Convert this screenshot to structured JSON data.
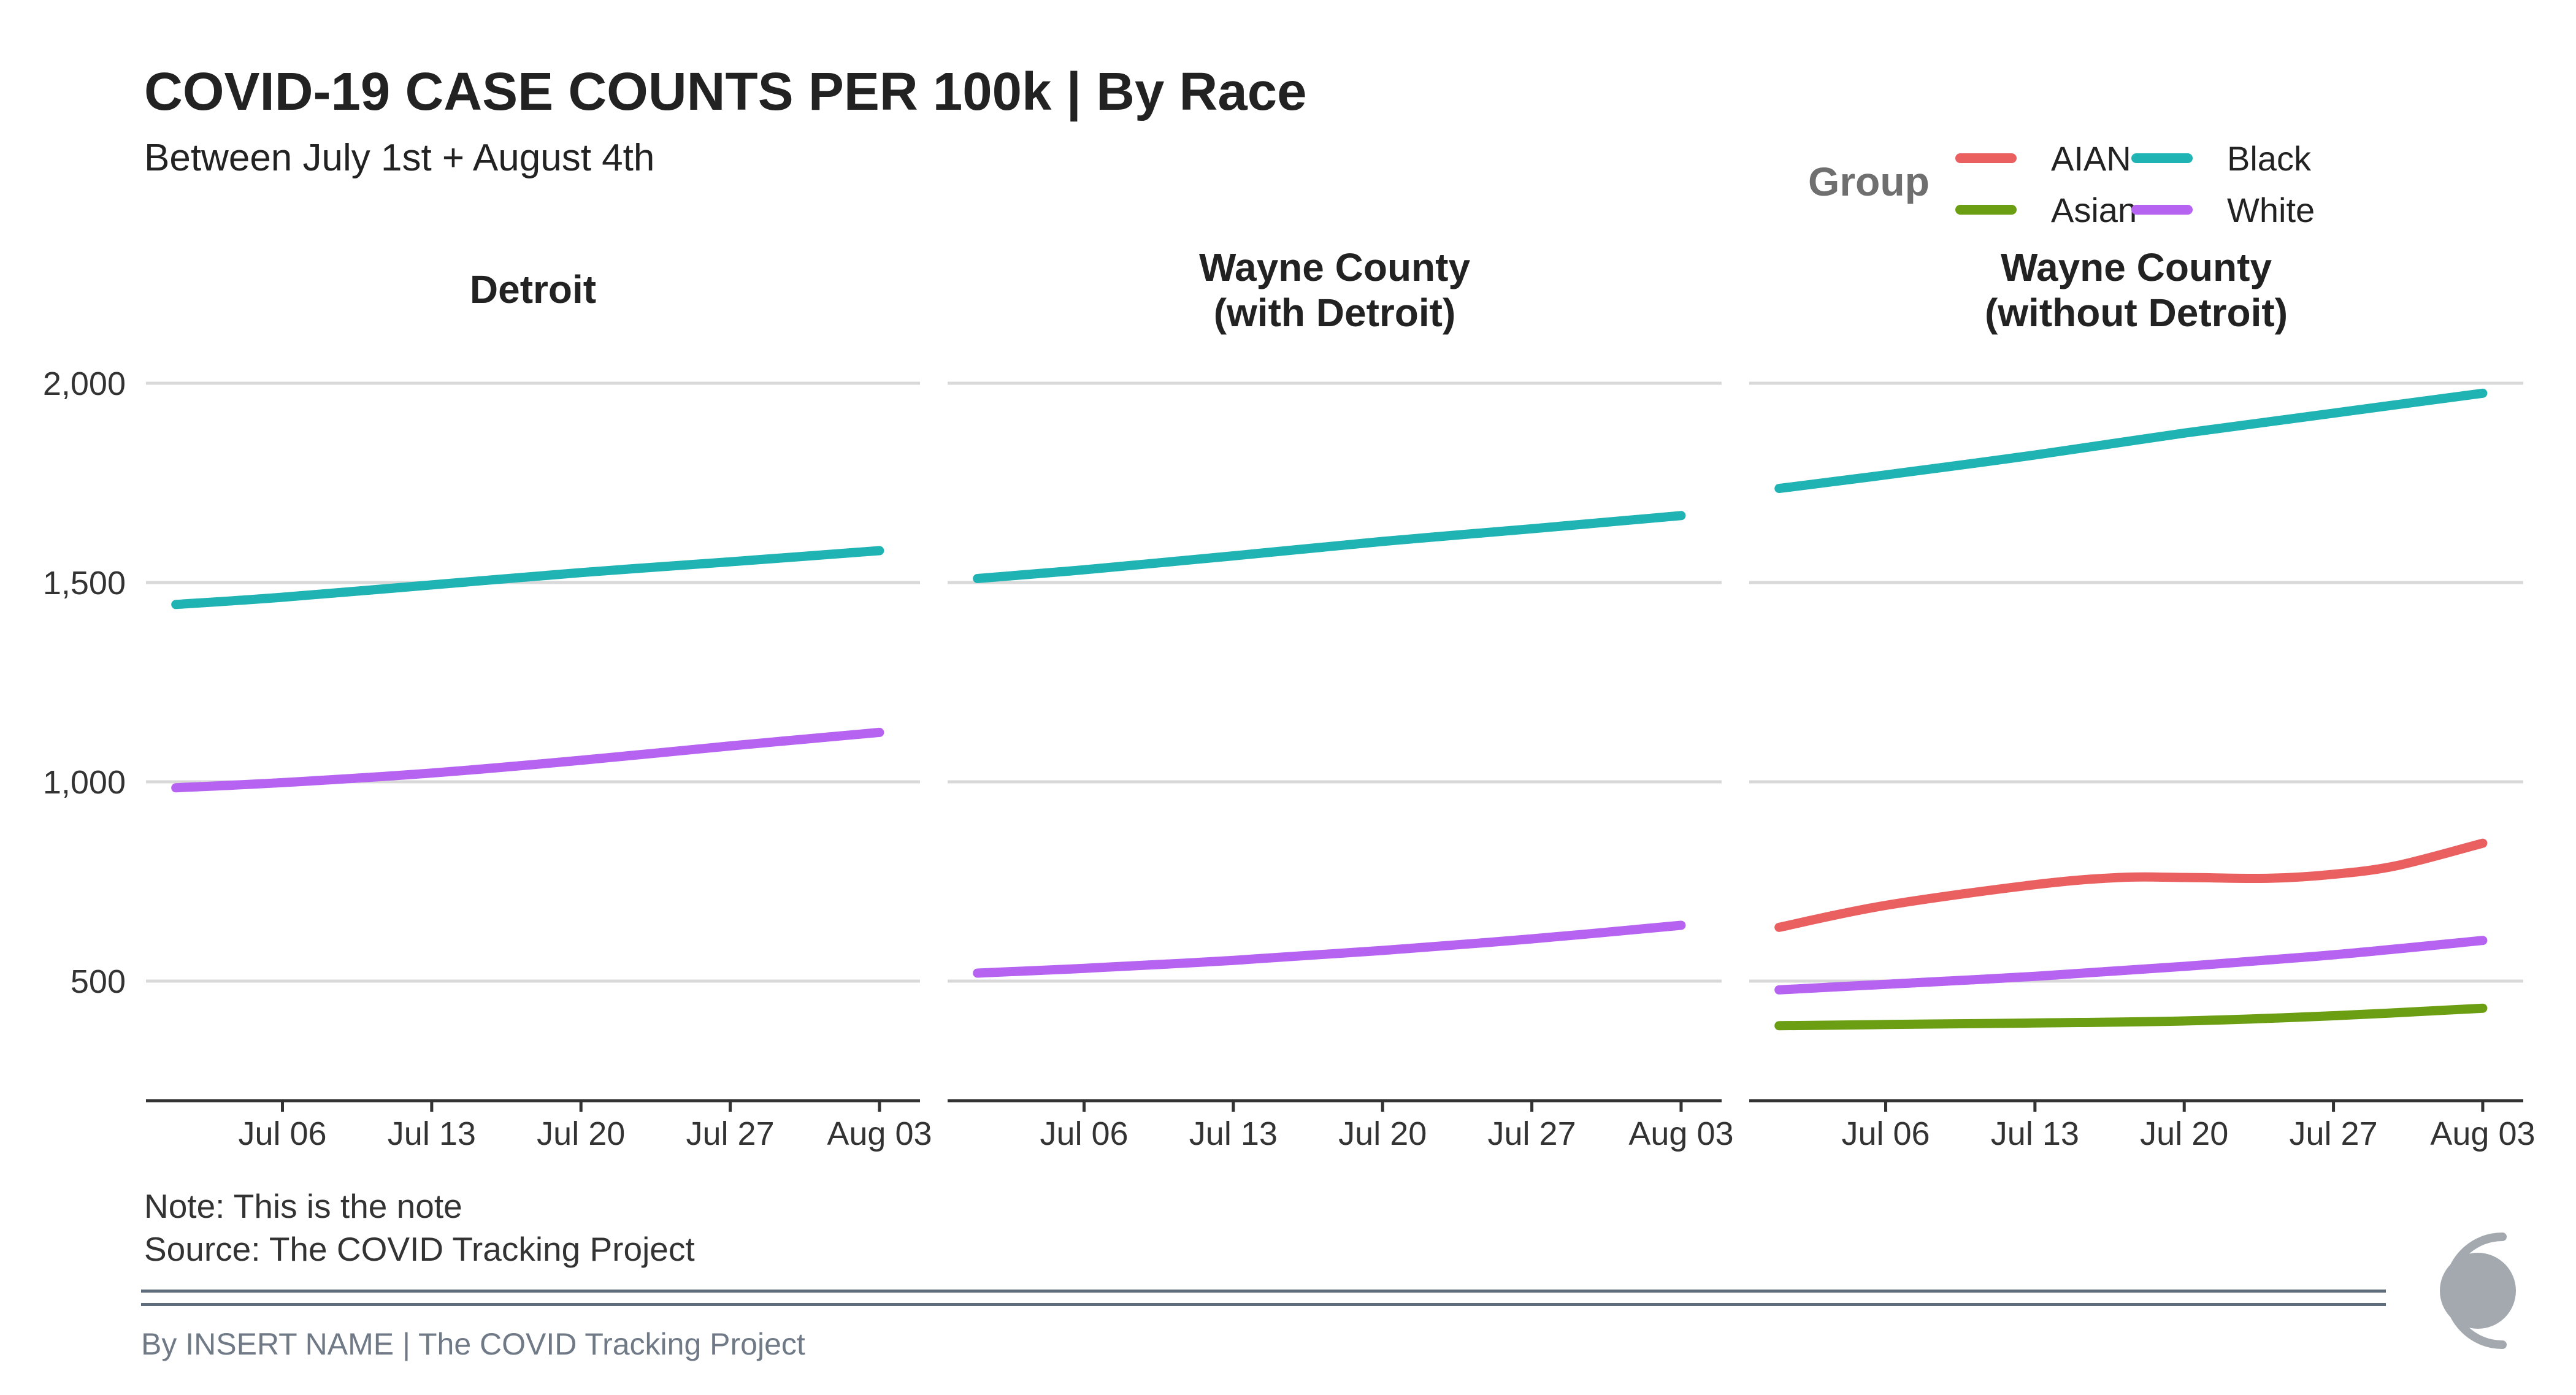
{
  "chart_data": {
    "type": "line",
    "title": "COVID-19 CASE COUNTS PER 100k | By Race",
    "subtitle": "Between July 1st + August 4th",
    "legend": {
      "title": "Group",
      "placement": "top-right",
      "entries": [
        {
          "name": "AIAN",
          "color": "#ea5f5f"
        },
        {
          "name": "Black",
          "color": "#1fb3b3"
        },
        {
          "name": "Asian",
          "color": "#6b9e12"
        },
        {
          "name": "White",
          "color": "#b563f0"
        }
      ]
    },
    "x_ticks": [
      "Jul 06",
      "Jul 13",
      "Jul 20",
      "Jul 27",
      "Aug 03"
    ],
    "x_tick_days": [
      6,
      13,
      20,
      27,
      34
    ],
    "xlim_days": [
      -0.4,
      35.9
    ],
    "y_ticks": [
      500,
      1000,
      1500,
      2000
    ],
    "y_tick_labels": [
      "500",
      "1,000",
      "1,500",
      "2,000"
    ],
    "ylim": [
      200,
      2100
    ],
    "grid": "horizontal",
    "panels": [
      {
        "name": "Detroit",
        "title_lines": [
          "Detroit"
        ],
        "series": [
          {
            "name": "Black",
            "x_days": [
              1,
              6,
              13,
              20,
              27,
              34
            ],
            "values": [
              1445,
              1463,
              1494,
              1525,
              1552,
              1580
            ]
          },
          {
            "name": "White",
            "x_days": [
              1,
              6,
              13,
              20,
              27,
              34
            ],
            "values": [
              985,
              998,
              1022,
              1054,
              1090,
              1124
            ]
          }
        ]
      },
      {
        "name": "Wayne County (with Detroit)",
        "title_lines": [
          "Wayne County",
          "(with Detroit)"
        ],
        "series": [
          {
            "name": "Black",
            "x_days": [
              1,
              6,
              13,
              20,
              27,
              34
            ],
            "values": [
              1510,
              1532,
              1567,
              1603,
              1635,
              1668
            ]
          },
          {
            "name": "White",
            "x_days": [
              1,
              6,
              13,
              20,
              27,
              34
            ],
            "values": [
              520,
              532,
              552,
              577,
              606,
              640
            ]
          }
        ]
      },
      {
        "name": "Wayne County (without Detroit)",
        "title_lines": [
          "Wayne County",
          "(without Detroit)"
        ],
        "series": [
          {
            "name": "Black",
            "x_days": [
              1,
              6,
              13,
              20,
              27,
              34
            ],
            "values": [
              1736,
              1770,
              1820,
              1875,
              1925,
              1975
            ]
          },
          {
            "name": "AIAN",
            "x_days": [
              1,
              6,
              13,
              17,
              20,
              24,
              27,
              30,
              34
            ],
            "values": [
              635,
              690,
              742,
              760,
              760,
              758,
              768,
              790,
              846
            ]
          },
          {
            "name": "White",
            "x_days": [
              1,
              6,
              13,
              20,
              27,
              34
            ],
            "values": [
              478,
              492,
              512,
              537,
              566,
              602
            ]
          },
          {
            "name": "Asian",
            "x_days": [
              1,
              6,
              13,
              20,
              27,
              34
            ],
            "values": [
              388,
              391,
              395,
              400,
              413,
              432
            ]
          }
        ]
      }
    ]
  },
  "footer": {
    "note": "Note: This is the note",
    "source": "Source: The COVID Tracking Project",
    "credit": "By INSERT NAME | The COVID Tracking Project"
  },
  "colors": {
    "gridline": "#d9d9d9",
    "axis": "#333333",
    "rule": "#5f6c7b",
    "logo": "#a3a9af"
  }
}
